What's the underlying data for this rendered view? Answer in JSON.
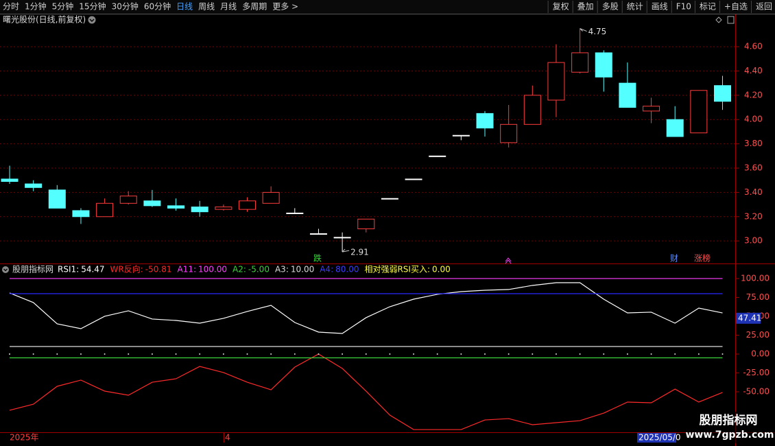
{
  "toolbar": {
    "left": [
      "分时",
      "1分钟",
      "5分钟",
      "15分钟",
      "30分钟",
      "60分钟",
      "日线",
      "周线",
      "月线",
      "多周期",
      "更多 >"
    ],
    "active": 6,
    "right": [
      "复权",
      "叠加",
      "多股",
      "统计",
      "画线",
      "F10",
      "标记",
      "+自选",
      "返回"
    ]
  },
  "chart_data": [
    {
      "type": "candlestick",
      "title": "曙光股份(日线,前复权)",
      "open": [
        3.51,
        3.47,
        3.42,
        3.25,
        3.2,
        3.31,
        3.33,
        3.29,
        3.28,
        3.26,
        3.26,
        3.31,
        3.23,
        3.06,
        3.03,
        3.1,
        3.35,
        3.51,
        3.7,
        3.87,
        4.05,
        3.81,
        3.96,
        4.16,
        4.39,
        4.55,
        4.3,
        4.07,
        4.0,
        3.89,
        4.28
      ],
      "high": [
        3.62,
        3.5,
        3.46,
        3.27,
        3.35,
        3.41,
        3.42,
        3.35,
        3.33,
        3.3,
        3.36,
        3.45,
        3.27,
        3.1,
        3.07,
        3.18,
        3.35,
        3.51,
        3.7,
        3.87,
        4.07,
        4.12,
        4.28,
        4.62,
        4.75,
        4.57,
        4.47,
        4.18,
        4.11,
        4.24,
        4.36
      ],
      "low": [
        3.47,
        3.41,
        3.27,
        3.14,
        3.2,
        3.3,
        3.28,
        3.25,
        3.2,
        3.25,
        3.24,
        3.31,
        3.23,
        3.06,
        2.91,
        3.07,
        3.35,
        3.51,
        3.7,
        3.83,
        3.86,
        3.77,
        3.96,
        4.02,
        4.38,
        4.23,
        4.1,
        3.97,
        3.86,
        3.89,
        4.08
      ],
      "close": [
        3.49,
        3.44,
        3.27,
        3.2,
        3.31,
        3.37,
        3.29,
        3.27,
        3.24,
        3.28,
        3.33,
        3.4,
        3.23,
        3.06,
        3.03,
        3.18,
        3.35,
        3.51,
        3.7,
        3.87,
        3.93,
        3.96,
        4.2,
        4.47,
        4.55,
        4.35,
        4.1,
        4.11,
        3.86,
        4.24,
        4.15
      ],
      "up_color": "#ff3c3c",
      "down_color": "#54ffff",
      "flat_color": "#ffffff",
      "ylim": [
        2.82,
        4.77
      ],
      "yticks": [
        {
          "value": 3.0,
          "label": "3.00"
        },
        {
          "value": 3.2,
          "label": "3.20"
        },
        {
          "value": 3.4,
          "label": "3.40"
        },
        {
          "value": 3.6,
          "label": "3.60"
        },
        {
          "value": 3.8,
          "label": "3.80"
        },
        {
          "value": 4.0,
          "label": "4.00"
        },
        {
          "value": 4.2,
          "label": "4.20"
        },
        {
          "value": 4.4,
          "label": "4.40"
        },
        {
          "value": 4.6,
          "label": "4.60"
        }
      ],
      "grid": true,
      "max_label": "4.75",
      "min_label": "2.91",
      "events": [
        "跌",
        "财",
        "涨榜"
      ]
    },
    {
      "type": "line",
      "title": "股朋指标网",
      "series": [
        {
          "name": "RSI1:",
          "legend_value": "54.47",
          "color": "#ffffff",
          "style": "line",
          "values": [
            80.9,
            68.2,
            40.0,
            33.6,
            50.0,
            57.3,
            46.4,
            44.5,
            40.9,
            47.3,
            56.4,
            64.5,
            41.8,
            29.1,
            27.3,
            48.2,
            62.7,
            72.7,
            79.1,
            82.7,
            84.5,
            85.5,
            90.9,
            94.5,
            94.5,
            72.7,
            54.5,
            55.5,
            40.9,
            60.9,
            54.47
          ]
        },
        {
          "name": "WR反向:",
          "legend_value": "-50.81",
          "color": "#ff2a2a",
          "style": "line",
          "values": [
            -74.5,
            -66.4,
            -42.7,
            -34.5,
            -49.1,
            -54.5,
            -37.3,
            -32.7,
            -16.4,
            -24.5,
            -37.3,
            -47.3,
            -17.3,
            0,
            -19.1,
            -49.1,
            -80.9,
            -100,
            -100,
            -100,
            -87.3,
            -85.5,
            -93.6,
            -90.9,
            -88.2,
            -78.2,
            -63.6,
            -64.5,
            -46.4,
            -63.6,
            -50.81
          ]
        },
        {
          "name": "A11:",
          "legend_value": "100.00",
          "color": "#ff40ff",
          "style": "line",
          "values": [
            100,
            100,
            100,
            100,
            100,
            100,
            100,
            100,
            100,
            100,
            100,
            100,
            100,
            100,
            100,
            100,
            100,
            100,
            100,
            100,
            100,
            100,
            100,
            100,
            100,
            100,
            100,
            100,
            100,
            100,
            100
          ]
        },
        {
          "name": "A2:",
          "legend_value": "-5.00",
          "color": "#3cd23c",
          "style": "line",
          "values": [
            -5,
            -5,
            -5,
            -5,
            -5,
            -5,
            -5,
            -5,
            -5,
            -5,
            -5,
            -5,
            -5,
            -5,
            -5,
            -5,
            -5,
            -5,
            -5,
            -5,
            -5,
            -5,
            -5,
            -5,
            -5,
            -5,
            -5,
            -5,
            -5,
            -5,
            -5
          ]
        },
        {
          "name": "A3:",
          "legend_value": "10.00",
          "color": "#dcdcdc",
          "style": "line",
          "values": [
            10,
            10,
            10,
            10,
            10,
            10,
            10,
            10,
            10,
            10,
            10,
            10,
            10,
            10,
            10,
            10,
            10,
            10,
            10,
            10,
            10,
            10,
            10,
            10,
            10,
            10,
            10,
            10,
            10,
            10,
            10
          ]
        },
        {
          "name": "A4:",
          "legend_value": "80.00",
          "color": "#2a2aff",
          "style": "line",
          "values": [
            80,
            80,
            80,
            80,
            80,
            80,
            80,
            80,
            80,
            80,
            80,
            80,
            80,
            80,
            80,
            80,
            80,
            80,
            80,
            80,
            80,
            80,
            80,
            80,
            80,
            80,
            80,
            80,
            80,
            80,
            80
          ]
        },
        {
          "name": "相对强弱RSI买入:",
          "legend_value": "0.00",
          "color": "#ffff3c",
          "style": "dots",
          "values": [
            0,
            0,
            0,
            0,
            0,
            0,
            0,
            0,
            0,
            0,
            0,
            0,
            0,
            0,
            0,
            0,
            0,
            0,
            0,
            0,
            0,
            0,
            0,
            0,
            0,
            0,
            0,
            0,
            0,
            0,
            0
          ]
        }
      ],
      "ylim": [
        -103.6,
        114.5
      ],
      "yticks": [
        {
          "value": 100,
          "label": "100.00"
        },
        {
          "value": 75,
          "label": "75.00"
        },
        {
          "value": 50,
          "label": "50.00"
        },
        {
          "value": 25,
          "label": "25.00"
        },
        {
          "value": 0,
          "label": "0.00"
        },
        {
          "value": -25,
          "label": "-25.00"
        },
        {
          "value": -50,
          "label": "-50.00"
        }
      ],
      "cursor_value": 47.41,
      "grid": false
    }
  ],
  "date_labels": [
    "2025年",
    "4",
    "2025/05/0"
  ],
  "watermark": [
    "股朋指标网",
    "www.7gpzb.com"
  ]
}
